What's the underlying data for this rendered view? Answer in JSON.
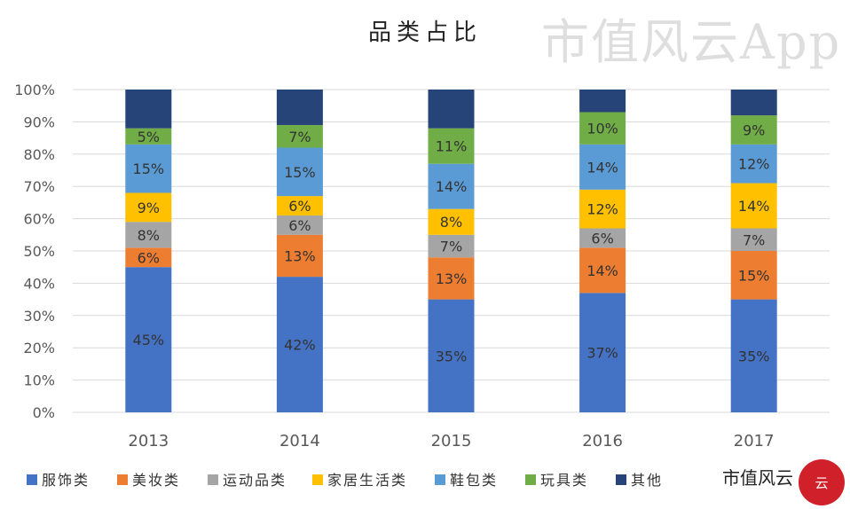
{
  "chart_data": {
    "type": "bar",
    "stacked": true,
    "title": "品类占比",
    "categories": [
      "2013",
      "2014",
      "2015",
      "2016",
      "2017"
    ],
    "ylim": [
      0,
      100
    ],
    "yticks": [
      "0%",
      "10%",
      "20%",
      "30%",
      "40%",
      "50%",
      "60%",
      "70%",
      "80%",
      "90%",
      "100%"
    ],
    "grid": true,
    "legend_position": "bottom",
    "series": [
      {
        "name": "服饰类",
        "color": "#4472c4",
        "values": [
          45,
          42,
          35,
          37,
          35
        ],
        "labels": [
          "45%",
          "42%",
          "35%",
          "37%",
          "35%"
        ]
      },
      {
        "name": "美妆类",
        "color": "#ed7d31",
        "values": [
          6,
          13,
          13,
          14,
          15
        ],
        "labels": [
          "6%",
          "13%",
          "13%",
          "14%",
          "15%"
        ]
      },
      {
        "name": "运动品类",
        "color": "#a5a5a5",
        "values": [
          8,
          6,
          7,
          6,
          7
        ],
        "labels": [
          "8%",
          "6%",
          "7%",
          "6%",
          "7%"
        ]
      },
      {
        "name": "家居生活类",
        "color": "#ffc000",
        "values": [
          9,
          6,
          8,
          12,
          14
        ],
        "labels": [
          "9%",
          "6%",
          "8%",
          "12%",
          "14%"
        ]
      },
      {
        "name": "鞋包类",
        "color": "#5b9bd5",
        "values": [
          15,
          15,
          14,
          14,
          12
        ],
        "labels": [
          "15%",
          "15%",
          "14%",
          "14%",
          "12%"
        ]
      },
      {
        "name": "玩具类",
        "color": "#70ad47",
        "values": [
          5,
          7,
          11,
          10,
          9
        ],
        "labels": [
          "5%",
          "7%",
          "11%",
          "10%",
          "9%"
        ]
      },
      {
        "name": "其他",
        "color": "#264478",
        "values": [
          12,
          11,
          12,
          7,
          8
        ],
        "labels": [
          "",
          "",
          "",
          "",
          ""
        ]
      }
    ]
  },
  "watermark": "市值风云App",
  "logo": {
    "text": "市值风云",
    "mark": "云"
  }
}
